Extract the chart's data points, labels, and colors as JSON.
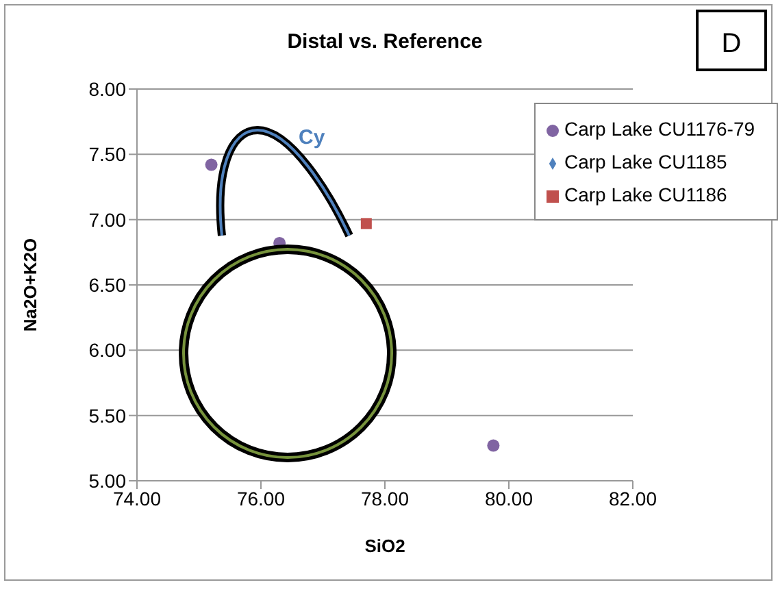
{
  "chart_data": {
    "type": "scatter",
    "title": "Distal vs. Reference",
    "xlabel": "SiO2",
    "ylabel": "Na2O+K2O",
    "annotations": [
      "Cy",
      "D"
    ],
    "xlim": [
      74,
      82
    ],
    "ylim": [
      5,
      8
    ],
    "xticks": [
      {
        "value": 74,
        "label": "74.00"
      },
      {
        "value": 76,
        "label": "76.00"
      },
      {
        "value": 78,
        "label": "78.00"
      },
      {
        "value": 80,
        "label": "80.00"
      },
      {
        "value": 82,
        "label": "82.00"
      }
    ],
    "yticks": [
      {
        "value": 5,
        "label": "5.00"
      },
      {
        "value": 5.5,
        "label": "5.50"
      },
      {
        "value": 6,
        "label": "6.00"
      },
      {
        "value": 6.5,
        "label": "6.50"
      },
      {
        "value": 7,
        "label": "7.00"
      },
      {
        "value": 7.5,
        "label": "7.50"
      },
      {
        "value": 8,
        "label": "8.00"
      }
    ],
    "grid": "y",
    "legend": "top right",
    "series": [
      {
        "name": "Carp Lake CU1176-79",
        "color": "#8064a2",
        "marker": "circle",
        "x": [
          75.2,
          76.3,
          79.75
        ],
        "values": [
          7.42,
          6.82,
          5.27
        ]
      },
      {
        "name": "Carp Lake CU1185",
        "color": "#4f81bd",
        "marker": "diamond",
        "x": [
          null
        ],
        "values": [
          null
        ]
      },
      {
        "name": "Carp Lake CU1186",
        "color": "#c0504d",
        "marker": "square",
        "x": [
          77.7
        ],
        "values": [
          6.97
        ]
      }
    ]
  }
}
